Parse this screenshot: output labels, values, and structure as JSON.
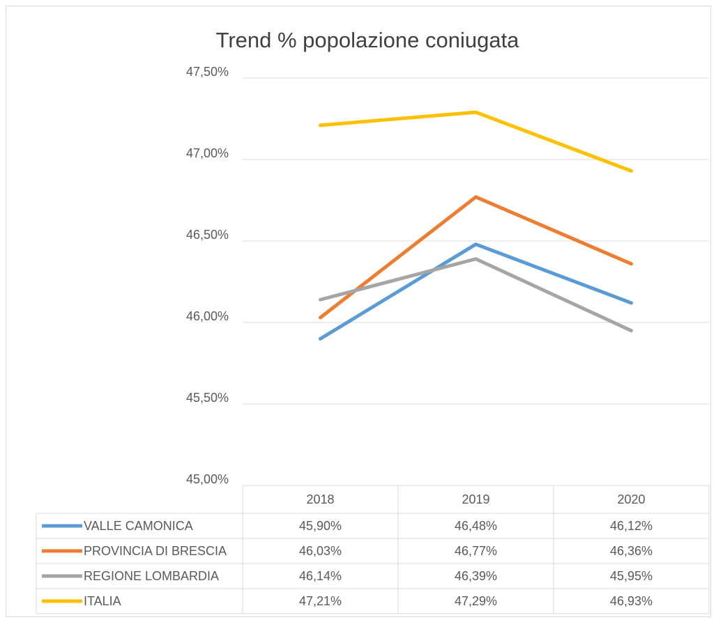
{
  "chart_data": {
    "type": "line",
    "title": "Trend % popolazione coniugata",
    "categories": [
      "2018",
      "2019",
      "2020"
    ],
    "series": [
      {
        "name": "VALLE CAMONICA",
        "color": "#5b9bd5",
        "values": [
          45.9,
          46.48,
          46.12
        ],
        "value_labels": [
          "45,90%",
          "46,48%",
          "46,12%"
        ]
      },
      {
        "name": "PROVINCIA DI BRESCIA",
        "color": "#ed7d31",
        "values": [
          46.03,
          46.77,
          46.36
        ],
        "value_labels": [
          "46,03%",
          "46,77%",
          "46,36%"
        ]
      },
      {
        "name": "REGIONE LOMBARDIA",
        "color": "#a5a5a5",
        "values": [
          46.14,
          46.39,
          45.95
        ],
        "value_labels": [
          "46,14%",
          "46,39%",
          "45,95%"
        ]
      },
      {
        "name": "ITALIA",
        "color": "#ffc000",
        "values": [
          47.21,
          47.29,
          46.93
        ],
        "value_labels": [
          "47,21%",
          "47,29%",
          "46,93%"
        ]
      }
    ],
    "ylim": [
      45.0,
      47.5
    ],
    "yticks": [
      {
        "value": 45.0,
        "label": "45,00%"
      },
      {
        "value": 45.5,
        "label": "45,50%"
      },
      {
        "value": 46.0,
        "label": "46,00%"
      },
      {
        "value": 46.5,
        "label": "46,50%"
      },
      {
        "value": 47.0,
        "label": "47,00%"
      },
      {
        "value": 47.5,
        "label": "47,50%"
      }
    ],
    "grid": true
  }
}
